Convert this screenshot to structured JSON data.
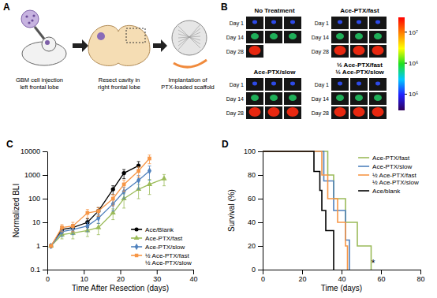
{
  "figure": {
    "panel_a": {
      "label": "A",
      "steps": [
        [
          "GBM cell injection",
          "left frontal lobe"
        ],
        [
          "Resect cavity in",
          "right frontal lobe"
        ],
        [
          "Implantation of",
          "PTX-loaded scaffold"
        ]
      ]
    },
    "panel_b": {
      "label": "B",
      "rows": [
        "Day 1",
        "Day 14",
        "Day 28"
      ],
      "groups": [
        {
          "title": [
            "No Treatment"
          ],
          "mice": [
            3,
            3,
            1
          ]
        },
        {
          "title": [
            "Ace-PTX/fast"
          ],
          "mice": [
            3,
            3,
            3
          ]
        },
        {
          "title": [
            "Ace-PTX/slow"
          ],
          "mice": [
            3,
            3,
            3
          ]
        },
        {
          "title": [
            "½ Ace-PTX/fast",
            "½ Ace-PTX/slow"
          ],
          "mice": [
            3,
            3,
            3
          ]
        }
      ],
      "colorbar": {
        "log": true,
        "lim": [
          30000,
          30000000
        ],
        "ticks": [
          {
            "value": 10000000,
            "label": "10⁷"
          },
          {
            "value": 1000000,
            "label": "10⁶"
          },
          {
            "value": 100000,
            "label": "10⁵"
          }
        ]
      }
    },
    "panel_c": {
      "label": "C"
    },
    "panel_d": {
      "label": "D"
    }
  },
  "chart_data": [
    {
      "type": "line",
      "xlabel": "Time After Resection (days)",
      "ylabel": "Normalized BLI",
      "xlim": [
        0,
        40
      ],
      "xticks": [
        0,
        10,
        20,
        30,
        40
      ],
      "ylim": [
        0.1,
        10000
      ],
      "yticks": [
        0.1,
        1,
        10,
        100,
        1000,
        10000
      ],
      "log": "y",
      "legend": "lower right",
      "series": [
        {
          "name": "Ace/Blank",
          "color": "#000000",
          "marker": "circle",
          "x": [
            1,
            4,
            7,
            11,
            14,
            18,
            21,
            25
          ],
          "values": [
            1,
            5,
            6,
            10,
            30,
            250,
            1200,
            2500
          ],
          "errors": [
            0,
            1.5,
            2,
            4,
            12,
            100,
            500,
            1200
          ]
        },
        {
          "name": "Ace-PTX/fast",
          "color": "#9bbb59",
          "marker": "triangle",
          "x": [
            1,
            4,
            7,
            11,
            14,
            18,
            21,
            25,
            28,
            32
          ],
          "values": [
            1,
            3,
            3.5,
            4.5,
            6,
            25,
            100,
            250,
            400,
            700
          ],
          "errors": [
            0,
            1,
            1.5,
            2,
            3,
            12,
            60,
            150,
            250,
            350
          ]
        },
        {
          "name": "Ace-PTX/slow",
          "color": "#4f81bd",
          "marker": "diamond",
          "x": [
            1,
            4,
            7,
            11,
            14,
            18,
            21,
            25,
            28
          ],
          "values": [
            1,
            4,
            5,
            7,
            15,
            60,
            200,
            600,
            1500
          ],
          "errors": [
            0,
            1.5,
            2,
            3,
            6,
            30,
            100,
            350,
            900
          ]
        },
        {
          "name": "½ Ace-PTX/fast ½ Ace-PTX/slow",
          "color": "#f79646",
          "marker": "square",
          "x": [
            1,
            4,
            7,
            11,
            14,
            18,
            21,
            25,
            28
          ],
          "values": [
            1,
            6,
            7,
            25,
            30,
            100,
            400,
            1500,
            5000
          ],
          "errors": [
            0,
            2,
            3,
            10,
            12,
            50,
            200,
            700,
            2000
          ]
        }
      ]
    },
    {
      "type": "line",
      "xlabel": "Time (days)",
      "ylabel": "Survival (%)",
      "xlim": [
        0,
        80
      ],
      "xticks": [
        0,
        20,
        40,
        60,
        80
      ],
      "ylim": [
        0,
        100
      ],
      "yticks": [
        0,
        20,
        40,
        60,
        80,
        100
      ],
      "legend": "upper right",
      "annotations": [
        {
          "text": "*",
          "x": 56,
          "y": 3
        }
      ],
      "series": [
        {
          "name": "Ace-PTX/fast",
          "color": "#9bbb59",
          "line_style": "step",
          "x": [
            0,
            33,
            36,
            42,
            48,
            55
          ],
          "values": [
            100,
            80,
            60,
            40,
            20,
            0
          ]
        },
        {
          "name": "Ace-PTX/slow",
          "color": "#4f81bd",
          "line_style": "step",
          "x": [
            0,
            31,
            36,
            42,
            44
          ],
          "values": [
            100,
            75,
            50,
            25,
            0
          ]
        },
        {
          "name": "½ Ace-PTX/fast ½ Ace-PTX/slow",
          "color": "#f79646",
          "line_style": "step",
          "x": [
            0,
            30,
            33,
            38,
            42,
            43
          ],
          "values": [
            100,
            80,
            60,
            40,
            20,
            0
          ]
        },
        {
          "name": "Ace/blank",
          "color": "#000000",
          "line_style": "step",
          "x": [
            0,
            26,
            29,
            30,
            32,
            36
          ],
          "values": [
            100,
            83,
            67,
            50,
            33,
            0
          ]
        }
      ]
    }
  ]
}
